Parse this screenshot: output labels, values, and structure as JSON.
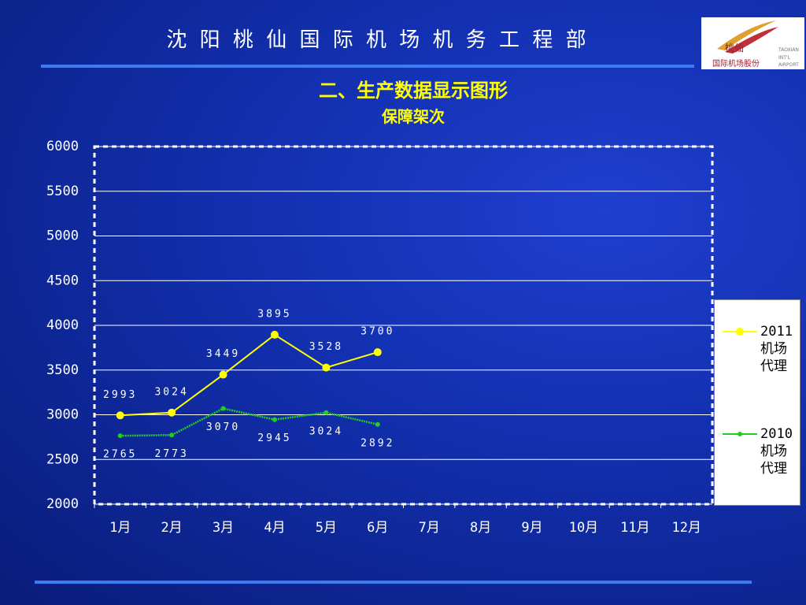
{
  "header": {
    "title": "沈 阳 桃 仙 国 际 机 场 机 务 工 程 部",
    "logo": {
      "name": "桃仙",
      "company": "国际机场股份",
      "en1": "TAOXIAN",
      "en2": "INT'L",
      "en3": "AIRPORT"
    }
  },
  "chart_data": {
    "type": "line",
    "title": "二、生产数据显示图形",
    "subtitle": "保障架次",
    "categories": [
      "1月",
      "2月",
      "3月",
      "4月",
      "5月",
      "6月",
      "7月",
      "8月",
      "9月",
      "10月",
      "11月",
      "12月"
    ],
    "series": [
      {
        "name": "2011机场代理",
        "color": "#ffff00",
        "values": [
          2993,
          3024,
          3449,
          3895,
          3528,
          3700,
          null,
          null,
          null,
          null,
          null,
          null
        ]
      },
      {
        "name": "2010机场代理",
        "color": "#22cc22",
        "values": [
          2765,
          2773,
          3070,
          2945,
          3024,
          2892,
          null,
          null,
          null,
          null,
          null,
          null
        ]
      }
    ],
    "ylim": [
      2000,
      6000
    ],
    "yticks": [
      2000,
      2500,
      3000,
      3500,
      4000,
      4500,
      5000,
      5500,
      6000
    ],
    "grid": true,
    "legend": "right"
  }
}
